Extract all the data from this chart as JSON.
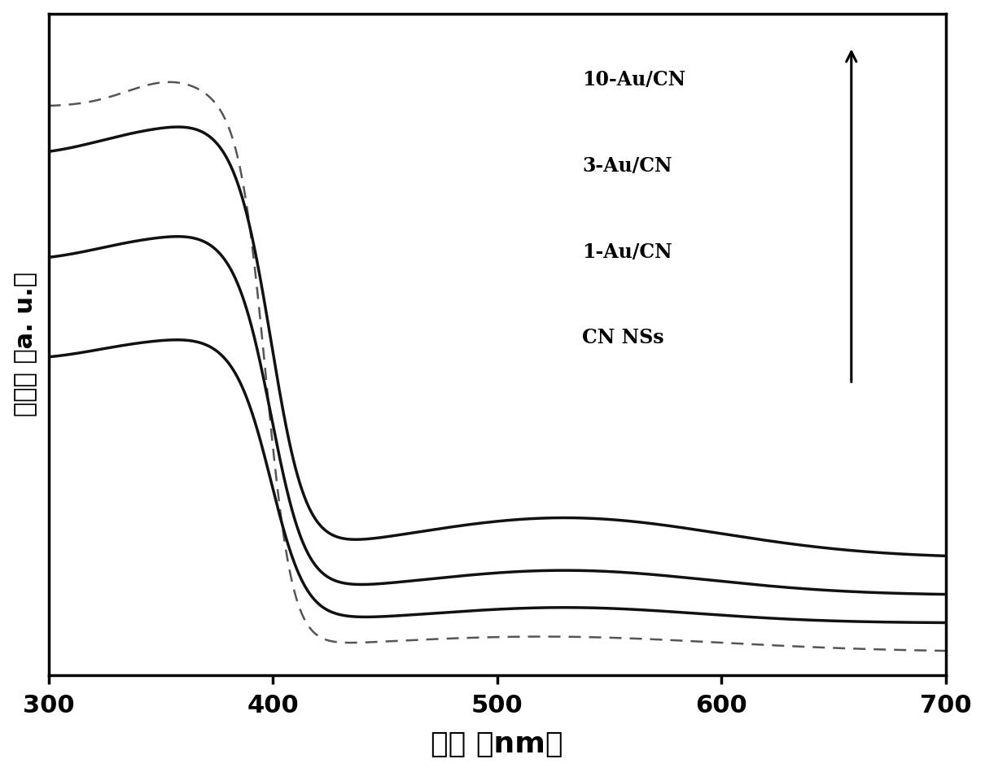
{
  "xlabel": "波长 （nm）",
  "ylabel": "吸光度 （a. u.）",
  "xlim": [
    300,
    700
  ],
  "ylim": [
    -0.02,
    1.05
  ],
  "background_color": "#ffffff",
  "legend_labels": [
    "10-Au/CN",
    "3-Au/CN",
    "1-Au/CN",
    "CN NSs"
  ],
  "xticks": [
    300,
    400,
    500,
    600,
    700
  ],
  "xlabel_fontsize": 26,
  "ylabel_fontsize": 22,
  "tick_fontsize": 22
}
